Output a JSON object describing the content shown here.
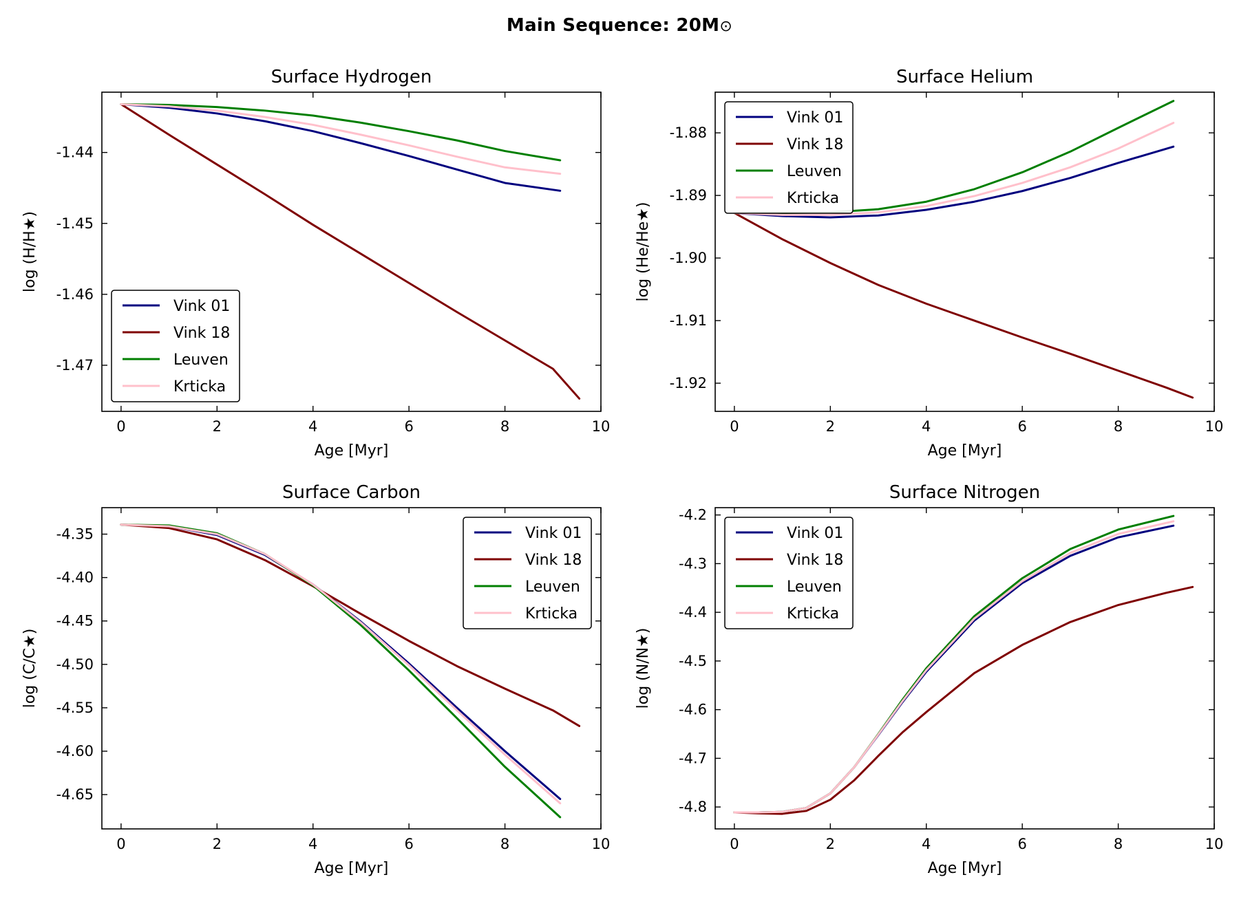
{
  "figure": {
    "title": "Main Sequence: 20M",
    "title_symbol": "⊙"
  },
  "chart_data": [
    {
      "type": "line",
      "title": "Surface Hydrogen",
      "xlabel": "Age [Myr]",
      "ylabel": "log (H/H★)",
      "xlim": [
        -0.4,
        10.0
      ],
      "ylim": [
        -1.4765,
        -1.4315
      ],
      "xticks": [
        0,
        2,
        4,
        6,
        8,
        10
      ],
      "yticks": [
        -1.44,
        -1.45,
        -1.46,
        -1.47
      ],
      "ytick_decimals": 2,
      "legend_position": "lower-left",
      "series": [
        {
          "name": "Vink 01",
          "color": "#00007f",
          "x": [
            0.0,
            1.0,
            2.0,
            3.0,
            4.0,
            5.0,
            6.0,
            7.0,
            8.0,
            9.15
          ],
          "y": [
            -1.4332,
            -1.4337,
            -1.4345,
            -1.4356,
            -1.437,
            -1.4387,
            -1.4405,
            -1.4424,
            -1.4443,
            -1.4454
          ]
        },
        {
          "name": "Vink 18",
          "color": "#7f0000",
          "x": [
            0.0,
            1.0,
            2.0,
            3.0,
            4.0,
            5.0,
            6.0,
            7.0,
            8.0,
            9.0,
            9.55
          ],
          "y": [
            -1.4332,
            -1.4375,
            -1.4417,
            -1.4459,
            -1.4502,
            -1.4543,
            -1.4584,
            -1.4625,
            -1.4665,
            -1.4705,
            -1.4747
          ]
        },
        {
          "name": "Leuven",
          "color": "#007f00",
          "x": [
            0.0,
            1.0,
            2.0,
            3.0,
            4.0,
            5.0,
            6.0,
            7.0,
            8.0,
            9.15
          ],
          "y": [
            -1.4332,
            -1.4333,
            -1.4336,
            -1.4341,
            -1.4348,
            -1.4358,
            -1.437,
            -1.4383,
            -1.4398,
            -1.4411
          ]
        },
        {
          "name": "Krticka",
          "color": "#ffc0cb",
          "x": [
            0.0,
            1.0,
            2.0,
            3.0,
            4.0,
            5.0,
            6.0,
            7.0,
            8.0,
            9.15
          ],
          "y": [
            -1.4332,
            -1.4335,
            -1.4341,
            -1.435,
            -1.4361,
            -1.4375,
            -1.439,
            -1.4406,
            -1.4421,
            -1.443
          ]
        }
      ]
    },
    {
      "type": "line",
      "title": "Surface Helium",
      "xlabel": "Age [Myr]",
      "ylabel": "log (He/He★)",
      "xlim": [
        -0.4,
        10.0
      ],
      "ylim": [
        -1.9245,
        -1.8735
      ],
      "xticks": [
        0,
        2,
        4,
        6,
        8,
        10
      ],
      "yticks": [
        -1.88,
        -1.89,
        -1.9,
        -1.91,
        -1.92
      ],
      "ytick_decimals": 2,
      "legend_position": "upper-left",
      "series": [
        {
          "name": "Vink 01",
          "color": "#00007f",
          "x": [
            0.0,
            1.0,
            2.0,
            3.0,
            4.0,
            5.0,
            6.0,
            7.0,
            8.0,
            9.15
          ],
          "y": [
            -1.8928,
            -1.8933,
            -1.8935,
            -1.8932,
            -1.8923,
            -1.891,
            -1.8893,
            -1.8872,
            -1.8848,
            -1.8822
          ]
        },
        {
          "name": "Vink 18",
          "color": "#7f0000",
          "x": [
            0.0,
            1.0,
            2.0,
            3.0,
            4.0,
            5.0,
            6.0,
            7.0,
            8.0,
            9.0,
            9.55
          ],
          "y": [
            -1.8928,
            -1.897,
            -1.9008,
            -1.9043,
            -1.9073,
            -1.91,
            -1.9127,
            -1.9153,
            -1.918,
            -1.9207,
            -1.9223
          ]
        },
        {
          "name": "Leuven",
          "color": "#007f00",
          "x": [
            0.0,
            1.0,
            2.0,
            3.0,
            4.0,
            5.0,
            6.0,
            7.0,
            8.0,
            9.15
          ],
          "y": [
            -1.8928,
            -1.8928,
            -1.8927,
            -1.8922,
            -1.891,
            -1.889,
            -1.8863,
            -1.883,
            -1.8792,
            -1.8749
          ]
        },
        {
          "name": "Krticka",
          "color": "#ffc0cb",
          "x": [
            0.0,
            1.0,
            2.0,
            3.0,
            4.0,
            5.0,
            6.0,
            7.0,
            8.0,
            9.15
          ],
          "y": [
            -1.8928,
            -1.8931,
            -1.8931,
            -1.8927,
            -1.8917,
            -1.8901,
            -1.888,
            -1.8855,
            -1.8825,
            -1.8784
          ]
        }
      ]
    },
    {
      "type": "line",
      "title": "Surface Carbon",
      "xlabel": "Age [Myr]",
      "ylabel": "log (C/C★)",
      "xlim": [
        -0.4,
        10.0
      ],
      "ylim": [
        -4.6895,
        -4.3195
      ],
      "xticks": [
        0,
        2,
        4,
        6,
        8,
        10
      ],
      "yticks": [
        -4.35,
        -4.4,
        -4.45,
        -4.5,
        -4.55,
        -4.6,
        -4.65
      ],
      "ytick_decimals": 2,
      "legend_position": "upper-right",
      "series": [
        {
          "name": "Vink 01",
          "color": "#00007f",
          "x": [
            0.0,
            1.0,
            2.0,
            3.0,
            4.0,
            5.0,
            6.0,
            7.0,
            8.0,
            9.15
          ],
          "y": [
            -4.339,
            -4.341,
            -4.351,
            -4.374,
            -4.408,
            -4.451,
            -4.499,
            -4.55,
            -4.6,
            -4.655
          ]
        },
        {
          "name": "Vink 18",
          "color": "#7f0000",
          "x": [
            0.0,
            1.0,
            2.0,
            3.0,
            4.0,
            5.0,
            6.0,
            7.0,
            8.0,
            9.0,
            9.55
          ],
          "y": [
            -4.339,
            -4.343,
            -4.356,
            -4.38,
            -4.41,
            -4.442,
            -4.473,
            -4.502,
            -4.528,
            -4.553,
            -4.571
          ]
        },
        {
          "name": "Leuven",
          "color": "#007f00",
          "x": [
            0.0,
            1.0,
            2.0,
            3.0,
            4.0,
            5.0,
            6.0,
            7.0,
            8.0,
            9.15
          ],
          "y": [
            -4.339,
            -4.34,
            -4.349,
            -4.373,
            -4.409,
            -4.455,
            -4.507,
            -4.562,
            -4.618,
            -4.676
          ]
        },
        {
          "name": "Krticka",
          "color": "#ffc0cb",
          "x": [
            0.0,
            1.0,
            2.0,
            3.0,
            4.0,
            5.0,
            6.0,
            7.0,
            8.0,
            9.15
          ],
          "y": [
            -4.339,
            -4.341,
            -4.35,
            -4.373,
            -4.408,
            -4.452,
            -4.501,
            -4.553,
            -4.604,
            -4.66
          ]
        }
      ]
    },
    {
      "type": "line",
      "title": "Surface Nitrogen",
      "xlabel": "Age [Myr]",
      "ylabel": "log (N/N★)",
      "xlim": [
        -0.4,
        10.0
      ],
      "ylim": [
        -4.845,
        -4.185
      ],
      "xticks": [
        0,
        2,
        4,
        6,
        8,
        10
      ],
      "yticks": [
        -4.2,
        -4.3,
        -4.4,
        -4.5,
        -4.6,
        -4.7,
        -4.8
      ],
      "ytick_decimals": 1,
      "legend_position": "upper-left",
      "series": [
        {
          "name": "Vink 01",
          "color": "#00007f",
          "x": [
            0.0,
            0.5,
            1.0,
            1.5,
            2.0,
            2.5,
            3.0,
            3.5,
            4.0,
            5.0,
            6.0,
            7.0,
            8.0,
            9.15
          ],
          "y": [
            -4.811,
            -4.811,
            -4.81,
            -4.802,
            -4.772,
            -4.718,
            -4.652,
            -4.585,
            -4.522,
            -4.417,
            -4.34,
            -4.284,
            -4.246,
            -4.222
          ]
        },
        {
          "name": "Vink 18",
          "color": "#7f0000",
          "x": [
            0.0,
            0.5,
            1.0,
            1.5,
            2.0,
            2.5,
            3.0,
            3.5,
            4.0,
            5.0,
            6.0,
            7.0,
            8.0,
            9.0,
            9.55
          ],
          "y": [
            -4.811,
            -4.813,
            -4.814,
            -4.808,
            -4.785,
            -4.745,
            -4.695,
            -4.647,
            -4.605,
            -4.525,
            -4.467,
            -4.42,
            -4.385,
            -4.36,
            -4.348
          ]
        },
        {
          "name": "Leuven",
          "color": "#007f00",
          "x": [
            0.0,
            0.5,
            1.0,
            1.5,
            2.0,
            2.5,
            3.0,
            3.5,
            4.0,
            5.0,
            6.0,
            7.0,
            8.0,
            9.15
          ],
          "y": [
            -4.811,
            -4.811,
            -4.81,
            -4.802,
            -4.772,
            -4.718,
            -4.65,
            -4.58,
            -4.515,
            -4.408,
            -4.33,
            -4.27,
            -4.23,
            -4.202
          ]
        },
        {
          "name": "Krticka",
          "color": "#ffc0cb",
          "x": [
            0.0,
            0.5,
            1.0,
            1.5,
            2.0,
            2.5,
            3.0,
            3.5,
            4.0,
            5.0,
            6.0,
            7.0,
            8.0,
            9.15
          ],
          "y": [
            -4.811,
            -4.811,
            -4.81,
            -4.802,
            -4.772,
            -4.718,
            -4.651,
            -4.583,
            -4.519,
            -4.413,
            -4.336,
            -4.278,
            -4.239,
            -4.213
          ]
        }
      ]
    }
  ]
}
